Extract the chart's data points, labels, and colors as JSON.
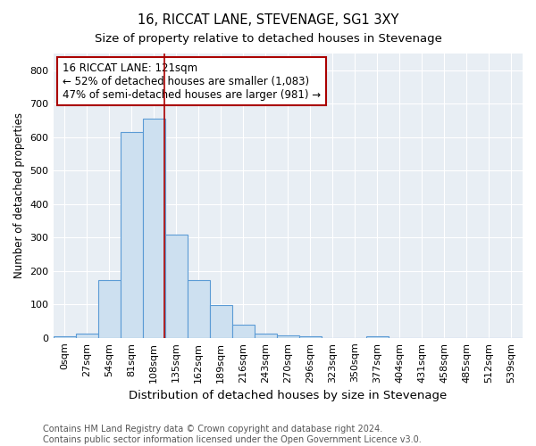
{
  "title": "16, RICCAT LANE, STEVENAGE, SG1 3XY",
  "subtitle": "Size of property relative to detached houses in Stevenage",
  "xlabel": "Distribution of detached houses by size in Stevenage",
  "ylabel": "Number of detached properties",
  "footnote1": "Contains HM Land Registry data © Crown copyright and database right 2024.",
  "footnote2": "Contains public sector information licensed under the Open Government Licence v3.0.",
  "annotation_title": "16 RICCAT LANE: 121sqm",
  "annotation_line1": "← 52% of detached houses are smaller (1,083)",
  "annotation_line2": "47% of semi-detached houses are larger (981) →",
  "bar_color": "#cde0f0",
  "bar_edge_color": "#5b9bd5",
  "marker_color": "#aa0000",
  "annotation_box_edge_color": "#aa0000",
  "background_color": "#e8eef4",
  "categories": [
    "0sqm",
    "27sqm",
    "54sqm",
    "81sqm",
    "108sqm",
    "135sqm",
    "162sqm",
    "189sqm",
    "216sqm",
    "243sqm",
    "270sqm",
    "296sqm",
    "323sqm",
    "350sqm",
    "377sqm",
    "404sqm",
    "431sqm",
    "458sqm",
    "485sqm",
    "512sqm",
    "539sqm"
  ],
  "values": [
    5,
    13,
    172,
    615,
    655,
    308,
    174,
    97,
    40,
    13,
    8,
    5,
    0,
    0,
    5,
    0,
    0,
    0,
    0,
    0,
    0
  ],
  "ylim": [
    0,
    850
  ],
  "yticks": [
    0,
    100,
    200,
    300,
    400,
    500,
    600,
    700,
    800
  ],
  "title_fontsize": 10.5,
  "subtitle_fontsize": 9.5,
  "xlabel_fontsize": 9.5,
  "ylabel_fontsize": 8.5,
  "tick_fontsize": 8,
  "footnote_fontsize": 7,
  "annotation_fontsize": 8.5
}
